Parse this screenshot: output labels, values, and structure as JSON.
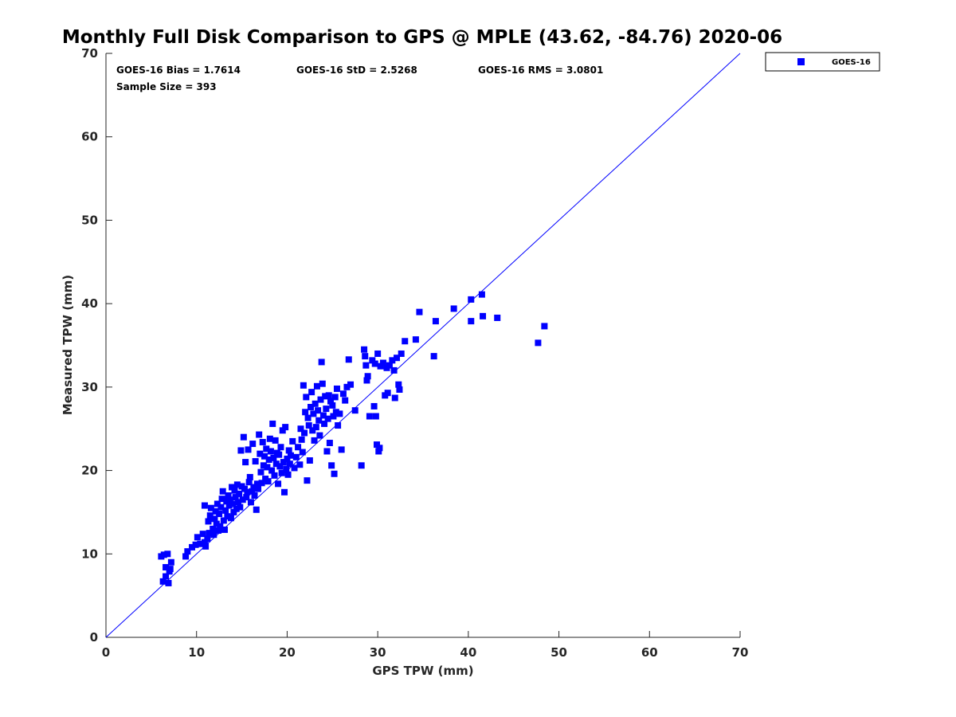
{
  "chart_data": {
    "type": "scatter",
    "title": "Monthly Full Disk Comparison to GPS @ MPLE (43.62, -84.76) 2020-06",
    "xlabel": "GPS TPW (mm)",
    "ylabel": "Measured TPW (mm)",
    "xlim": [
      0,
      70
    ],
    "ylim": [
      0,
      70
    ],
    "xticks": [
      0,
      10,
      20,
      30,
      40,
      50,
      60,
      70
    ],
    "yticks": [
      0,
      10,
      20,
      30,
      40,
      50,
      60,
      70
    ],
    "grid": false,
    "legend_position": "top-right (outside plot)",
    "annotations": {
      "bias": "GOES-16 Bias = 1.7614",
      "std": "GOES-16 StD = 2.5268",
      "rms": "GOES-16 RMS = 3.0801",
      "sample_size": "Sample Size = 393"
    },
    "reference_line": {
      "name": "1:1 line",
      "x": [
        0,
        70
      ],
      "y": [
        0,
        70
      ],
      "color": "#0000ff"
    },
    "series": [
      {
        "name": "GOES-16",
        "marker": "square",
        "color": "#0000ff",
        "points": [
          [
            6.1,
            9.7
          ],
          [
            6.4,
            9.9
          ],
          [
            6.8,
            10.0
          ],
          [
            6.3,
            6.7
          ],
          [
            6.9,
            6.5
          ],
          [
            6.6,
            7.3
          ],
          [
            6.6,
            8.4
          ],
          [
            7.1,
            8.2
          ],
          [
            7.2,
            9.0
          ],
          [
            7.0,
            7.9
          ],
          [
            8.8,
            9.7
          ],
          [
            9.0,
            10.3
          ],
          [
            9.5,
            10.8
          ],
          [
            9.9,
            11.1
          ],
          [
            10.1,
            12.0
          ],
          [
            10.4,
            11.2
          ],
          [
            10.7,
            12.4
          ],
          [
            10.9,
            11.4
          ],
          [
            11.0,
            10.9
          ],
          [
            11.2,
            11.8
          ],
          [
            11.4,
            12.5
          ],
          [
            10.9,
            15.8
          ],
          [
            11.3,
            13.9
          ],
          [
            11.5,
            14.6
          ],
          [
            11.6,
            15.5
          ],
          [
            11.8,
            13.0
          ],
          [
            11.9,
            12.3
          ],
          [
            12.0,
            14.2
          ],
          [
            12.1,
            15.1
          ],
          [
            12.2,
            13.6
          ],
          [
            12.3,
            16.0
          ],
          [
            12.4,
            12.8
          ],
          [
            12.5,
            14.8
          ],
          [
            12.6,
            13.3
          ],
          [
            12.7,
            15.6
          ],
          [
            12.8,
            16.6
          ],
          [
            12.9,
            17.5
          ],
          [
            13.0,
            14.0
          ],
          [
            13.1,
            12.9
          ],
          [
            13.2,
            15.2
          ],
          [
            13.3,
            16.3
          ],
          [
            13.4,
            14.5
          ],
          [
            13.5,
            17.0
          ],
          [
            13.6,
            15.8
          ],
          [
            13.7,
            16.5
          ],
          [
            13.8,
            14.3
          ],
          [
            13.9,
            18.0
          ],
          [
            14.0,
            16.0
          ],
          [
            14.1,
            15.0
          ],
          [
            14.2,
            17.6
          ],
          [
            14.3,
            16.8
          ],
          [
            14.4,
            15.4
          ],
          [
            14.5,
            18.3
          ],
          [
            14.6,
            16.2
          ],
          [
            14.7,
            17.2
          ],
          [
            14.8,
            15.6
          ],
          [
            14.9,
            22.4
          ],
          [
            15.0,
            18.1
          ],
          [
            15.1,
            16.5
          ],
          [
            15.2,
            24.0
          ],
          [
            15.3,
            17.8
          ],
          [
            15.4,
            21.0
          ],
          [
            15.5,
            16.8
          ],
          [
            15.6,
            17.4
          ],
          [
            15.7,
            22.5
          ],
          [
            15.8,
            18.6
          ],
          [
            15.9,
            19.2
          ],
          [
            16.0,
            16.2
          ],
          [
            16.1,
            17.5
          ],
          [
            16.2,
            23.2
          ],
          [
            16.3,
            18.0
          ],
          [
            16.4,
            17.0
          ],
          [
            16.5,
            21.1
          ],
          [
            16.6,
            15.3
          ],
          [
            16.7,
            18.4
          ],
          [
            16.8,
            17.8
          ],
          [
            16.9,
            24.3
          ],
          [
            17.0,
            22.0
          ],
          [
            17.1,
            19.8
          ],
          [
            17.2,
            18.5
          ],
          [
            17.3,
            23.4
          ],
          [
            17.4,
            20.6
          ],
          [
            17.5,
            21.7
          ],
          [
            17.6,
            19.0
          ],
          [
            17.7,
            22.6
          ],
          [
            17.8,
            20.4
          ],
          [
            17.9,
            18.7
          ],
          [
            18.0,
            21.3
          ],
          [
            18.1,
            23.8
          ],
          [
            18.2,
            22.3
          ],
          [
            18.3,
            20.0
          ],
          [
            18.4,
            25.6
          ],
          [
            18.5,
            21.5
          ],
          [
            18.6,
            19.4
          ],
          [
            18.7,
            23.6
          ],
          [
            18.8,
            20.8
          ],
          [
            18.9,
            22.1
          ],
          [
            19.0,
            18.4
          ],
          [
            19.1,
            21.9
          ],
          [
            19.2,
            20.5
          ],
          [
            19.3,
            22.8
          ],
          [
            19.4,
            19.7
          ],
          [
            19.5,
            24.8
          ],
          [
            19.6,
            21.0
          ],
          [
            19.7,
            17.4
          ],
          [
            19.8,
            25.2
          ],
          [
            19.9,
            20.2
          ],
          [
            20.0,
            21.4
          ],
          [
            20.1,
            19.5
          ],
          [
            20.2,
            22.4
          ],
          [
            20.3,
            20.8
          ],
          [
            20.4,
            21.8
          ],
          [
            20.6,
            23.5
          ],
          [
            20.8,
            20.3
          ],
          [
            21.0,
            21.6
          ],
          [
            21.2,
            22.8
          ],
          [
            21.4,
            20.7
          ],
          [
            21.5,
            25.0
          ],
          [
            21.6,
            23.7
          ],
          [
            21.7,
            22.2
          ],
          [
            21.8,
            30.2
          ],
          [
            21.9,
            24.5
          ],
          [
            22.0,
            27.0
          ],
          [
            22.1,
            28.8
          ],
          [
            22.2,
            18.8
          ],
          [
            22.3,
            26.3
          ],
          [
            22.4,
            25.4
          ],
          [
            22.5,
            21.2
          ],
          [
            22.6,
            27.6
          ],
          [
            22.7,
            29.4
          ],
          [
            22.8,
            24.8
          ],
          [
            22.9,
            26.8
          ],
          [
            23.0,
            23.6
          ],
          [
            23.1,
            28.0
          ],
          [
            23.2,
            25.2
          ],
          [
            23.3,
            30.1
          ],
          [
            23.4,
            27.2
          ],
          [
            23.5,
            26.0
          ],
          [
            23.6,
            24.2
          ],
          [
            23.7,
            28.5
          ],
          [
            23.8,
            33.0
          ],
          [
            23.9,
            30.4
          ],
          [
            24.0,
            26.6
          ],
          [
            24.1,
            25.6
          ],
          [
            24.2,
            28.9
          ],
          [
            24.3,
            27.4
          ],
          [
            24.4,
            22.3
          ],
          [
            24.5,
            26.2
          ],
          [
            24.6,
            29.0
          ],
          [
            24.7,
            23.3
          ],
          [
            24.8,
            28.3
          ],
          [
            24.9,
            20.6
          ],
          [
            25.0,
            27.8
          ],
          [
            25.1,
            26.5
          ],
          [
            25.2,
            19.6
          ],
          [
            25.3,
            28.8
          ],
          [
            25.4,
            27.0
          ],
          [
            25.5,
            29.8
          ],
          [
            25.6,
            25.4
          ],
          [
            25.8,
            26.8
          ],
          [
            26.0,
            22.5
          ],
          [
            26.2,
            29.2
          ],
          [
            26.4,
            28.4
          ],
          [
            26.6,
            30.0
          ],
          [
            26.8,
            33.3
          ],
          [
            27.0,
            30.3
          ],
          [
            27.5,
            27.2
          ],
          [
            28.2,
            20.6
          ],
          [
            28.5,
            34.5
          ],
          [
            28.6,
            33.7
          ],
          [
            28.7,
            32.6
          ],
          [
            28.8,
            30.8
          ],
          [
            28.9,
            31.3
          ],
          [
            29.1,
            26.5
          ],
          [
            29.4,
            33.2
          ],
          [
            29.6,
            27.7
          ],
          [
            29.7,
            32.8
          ],
          [
            29.8,
            26.5
          ],
          [
            29.9,
            23.1
          ],
          [
            30.0,
            34.0
          ],
          [
            30.1,
            22.3
          ],
          [
            30.2,
            22.7
          ],
          [
            30.3,
            32.5
          ],
          [
            30.6,
            32.9
          ],
          [
            30.8,
            29.0
          ],
          [
            31.0,
            32.3
          ],
          [
            31.1,
            29.3
          ],
          [
            31.3,
            32.6
          ],
          [
            31.6,
            33.2
          ],
          [
            31.8,
            32.0
          ],
          [
            31.9,
            28.7
          ],
          [
            32.1,
            33.5
          ],
          [
            32.3,
            30.3
          ],
          [
            32.4,
            29.7
          ],
          [
            32.6,
            34.0
          ],
          [
            33.0,
            35.5
          ],
          [
            34.2,
            35.7
          ],
          [
            34.6,
            39.0
          ],
          [
            36.2,
            33.7
          ],
          [
            36.4,
            37.9
          ],
          [
            38.4,
            39.4
          ],
          [
            40.3,
            40.5
          ],
          [
            40.3,
            37.9
          ],
          [
            41.5,
            41.1
          ],
          [
            41.6,
            38.5
          ],
          [
            43.2,
            38.3
          ],
          [
            47.7,
            35.3
          ],
          [
            48.4,
            37.3
          ]
        ]
      }
    ]
  },
  "legend": {
    "entries": [
      {
        "label": "GOES-16",
        "color": "#0000ff"
      }
    ]
  }
}
